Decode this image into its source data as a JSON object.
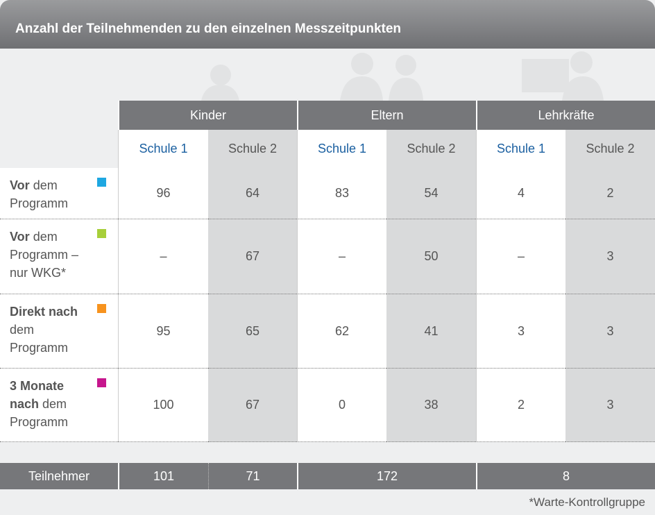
{
  "header": {
    "title": "Anzahl der Teilnehmenden zu den einzelnen Messzeitpunkten"
  },
  "table": {
    "groups": [
      "Kinder",
      "Eltern",
      "Lehrkräfte"
    ],
    "subheaders": [
      "Schule 1",
      "Schule 2",
      "Schule 1",
      "Schule 2",
      "Schule 1",
      "Schule 2"
    ],
    "rows": [
      {
        "bold": "Vor",
        "rest": "dem Programm",
        "color": "#1ea7e1",
        "cells": [
          96,
          64,
          83,
          54,
          4,
          2
        ]
      },
      {
        "bold": "Vor",
        "rest": "dem Programm – nur WKG*",
        "color": "#a7cf3a",
        "cells": [
          "–",
          67,
          "–",
          50,
          "–",
          3
        ]
      },
      {
        "bold": "Direkt nach",
        "rest": "dem Programm",
        "color": "#f7931e",
        "cells": [
          95,
          65,
          62,
          41,
          3,
          3
        ]
      },
      {
        "bold": "3 Monate nach",
        "rest": "dem Programm",
        "color": "#c6168d",
        "cells": [
          100,
          67,
          0,
          38,
          2,
          3
        ]
      }
    ],
    "total": {
      "label": "Teilnehmer",
      "values": [
        101,
        71,
        172,
        8
      ]
    }
  },
  "footnote": "*Warte-Kontrollgruppe"
}
